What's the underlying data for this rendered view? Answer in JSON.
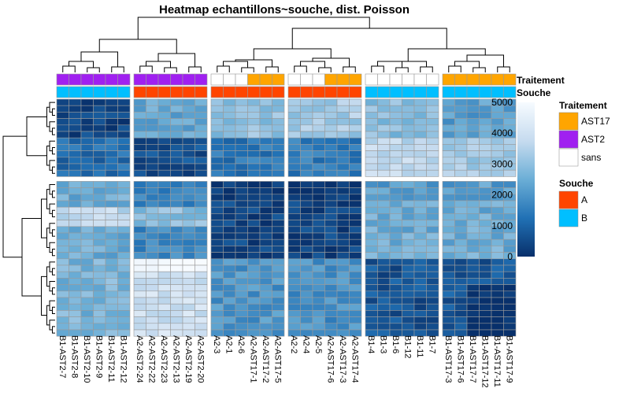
{
  "chart_data": {
    "type": "heatmap",
    "title": "Heatmap echantillons~souche, dist. Poisson",
    "columns": [
      "B1-AST2-7",
      "B1-AST2-8",
      "B1-AST2-10",
      "B1-AST2-9",
      "B1-AST2-11",
      "B1-AST2-12",
      "A2-AST2-24",
      "A2-AST2-22",
      "A2-AST2-23",
      "A2-AST2-13",
      "A2-AST2-19",
      "A2-AST2-20",
      "A2-3",
      "A2-1",
      "A2-6",
      "A2-AST17-1",
      "A2-AST17-2",
      "A2-AST17-5",
      "A2-2",
      "A2-4",
      "A2-5",
      "A2-AST17-6",
      "A2-AST17-3",
      "A2-AST17-4",
      "B1-4",
      "B1-3",
      "B1-6",
      "B1-12",
      "B1-11",
      "B1-7",
      "B1-AST17-3",
      "B1-AST17-6",
      "B1-AST17-7",
      "B1-AST17-12",
      "B1-AST17-11",
      "B1-AST17-9"
    ],
    "annotations": {
      "Traitement": [
        "AST2",
        "AST2",
        "AST2",
        "AST2",
        "AST2",
        "AST2",
        "AST2",
        "AST2",
        "AST2",
        "AST2",
        "AST2",
        "AST2",
        "sans",
        "sans",
        "sans",
        "AST17",
        "AST17",
        "AST17",
        "sans",
        "sans",
        "sans",
        "AST17",
        "AST17",
        "AST17",
        "sans",
        "sans",
        "sans",
        "sans",
        "sans",
        "sans",
        "AST17",
        "AST17",
        "AST17",
        "AST17",
        "AST17",
        "AST17"
      ],
      "Souche": [
        "B",
        "B",
        "B",
        "B",
        "B",
        "B",
        "A",
        "A",
        "A",
        "A",
        "A",
        "A",
        "A",
        "A",
        "A",
        "A",
        "A",
        "A",
        "A",
        "A",
        "A",
        "A",
        "A",
        "A",
        "B",
        "B",
        "B",
        "B",
        "B",
        "B",
        "B",
        "B",
        "B",
        "B",
        "B",
        "B"
      ]
    },
    "annotation_labels": [
      "Traitement",
      "Souche"
    ],
    "legend": {
      "Traitement": [
        {
          "label": "AST17",
          "color": "#FFA500"
        },
        {
          "label": "AST2",
          "color": "#A020F0"
        },
        {
          "label": "sans",
          "color": "#FFFFFF"
        }
      ],
      "Souche": [
        {
          "label": "A",
          "color": "#FF4500"
        },
        {
          "label": "B",
          "color": "#00BFFF"
        }
      ]
    },
    "colorbar": {
      "min": 0,
      "max": 5000,
      "ticks": [
        0,
        1000,
        2000,
        3000,
        4000,
        5000
      ],
      "colors": [
        "#08306B",
        "#2171B5",
        "#6BAED6",
        "#C6DBEF",
        "#F7FBFF"
      ]
    },
    "column_splits": [
      6,
      12,
      18,
      24,
      30
    ],
    "row_splits": [
      12
    ],
    "block_values": [
      [
        400,
        2400,
        3000,
        3300,
        2900,
        2200
      ],
      [
        1200,
        600,
        1400,
        1500,
        3700,
        3300
      ],
      [
        2500,
        1700,
        400,
        400,
        2500,
        2500
      ],
      [
        2700,
        4000,
        2000,
        1900,
        700,
        800
      ]
    ],
    "grid": true,
    "legend_position": "right"
  }
}
